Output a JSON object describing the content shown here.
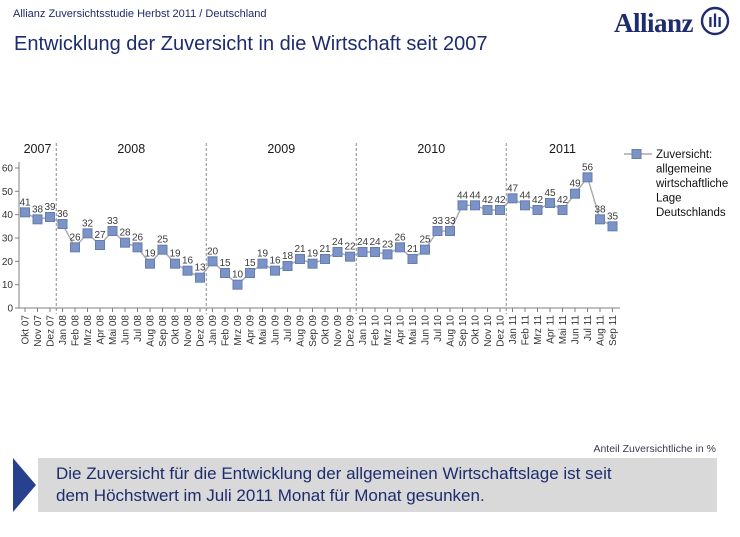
{
  "header": {
    "breadcrumb": "Allianz Zuversichtsstudie Herbst 2011 / Deutschland",
    "logo_text": "Allianz",
    "title": "Entwicklung der Zuversicht in die Wirtschaft seit 2007"
  },
  "chart_data": {
    "type": "line",
    "categories": [
      "Okt 07",
      "Nov 07",
      "Dez 07",
      "Jan 08",
      "Feb 08",
      "Mrz 08",
      "Apr 08",
      "Mai 08",
      "Jun 08",
      "Jul 08",
      "Aug 08",
      "Sep 08",
      "Okt 08",
      "Nov 08",
      "Dez 08",
      "Jan 09",
      "Feb 09",
      "Mrz 09",
      "Apr 09",
      "Mai 09",
      "Jun 09",
      "Jul 09",
      "Aug 09",
      "Sep 09",
      "Okt 09",
      "Nov 09",
      "Dez 09",
      "Jan 10",
      "Feb 10",
      "Mrz 10",
      "Apr 10",
      "Mai 10",
      "Jun 10",
      "Jul 10",
      "Aug 10",
      "Sep 10",
      "Okt 10",
      "Nov 10",
      "Dez 10",
      "Jan 11",
      "Feb 11",
      "Mrz 11",
      "Apr 11",
      "Mai 11",
      "Jun 11",
      "Jul 11",
      "Aug 11",
      "Sep 11"
    ],
    "values": [
      41,
      38,
      39,
      36,
      26,
      32,
      27,
      33,
      28,
      26,
      19,
      25,
      19,
      16,
      13,
      20,
      15,
      10,
      15,
      19,
      16,
      18,
      21,
      19,
      21,
      24,
      22,
      24,
      24,
      23,
      26,
      21,
      25,
      33,
      33,
      44,
      44,
      42,
      42,
      47,
      44,
      42,
      45,
      42,
      49,
      56,
      38,
      35
    ],
    "year_groups": [
      {
        "label": "2007",
        "count": 3
      },
      {
        "label": "2008",
        "count": 12
      },
      {
        "label": "2009",
        "count": 12
      },
      {
        "label": "2010",
        "count": 12
      },
      {
        "label": "2011",
        "count": 9
      }
    ],
    "ylim": [
      0,
      60
    ],
    "yticks": [
      0,
      10,
      20,
      30,
      40,
      50,
      60
    ],
    "legend": "Zuversicht: allgemeine wirtschaftliche Lage Deutschlands",
    "legend_lines": [
      "Zuversicht:",
      "allgemeine",
      "wirtschaftliche",
      "Lage",
      "Deutschlands"
    ],
    "grid": false,
    "legend_position": "right",
    "axis_note": "Anteil Zuversichtliche in %"
  },
  "callout": {
    "text": "Die Zuversicht für die Entwicklung der allgemeinen Wirtschaftslage ist seit\ndem Höchstwert im Juli 2011 Monat für Monat gesunken."
  },
  "colors": {
    "navy": "#1d2c6e",
    "marker_fill": "#7b93c7",
    "marker_stroke": "#647eb0",
    "series_line": "#a8a8a8",
    "axis": "#808080",
    "label_text": "#3a3a3a",
    "callout_bg": "#d9d9d9",
    "arrow_blue": "#27418f"
  }
}
